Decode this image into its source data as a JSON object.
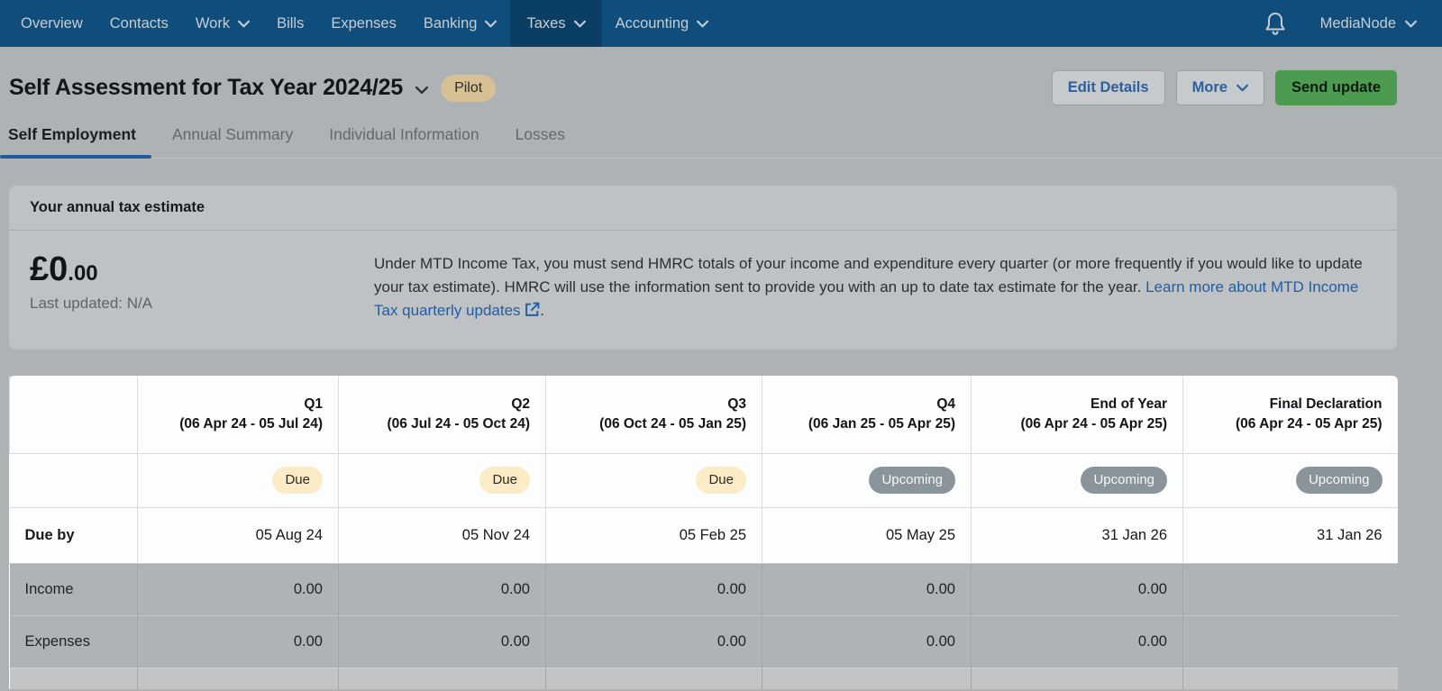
{
  "nav": {
    "items": [
      {
        "label": "Overview",
        "chevron": false,
        "active": false
      },
      {
        "label": "Contacts",
        "chevron": false,
        "active": false
      },
      {
        "label": "Work",
        "chevron": true,
        "active": false
      },
      {
        "label": "Bills",
        "chevron": false,
        "active": false
      },
      {
        "label": "Expenses",
        "chevron": false,
        "active": false
      },
      {
        "label": "Banking",
        "chevron": true,
        "active": false
      },
      {
        "label": "Taxes",
        "chevron": true,
        "active": true
      },
      {
        "label": "Accounting",
        "chevron": true,
        "active": false
      }
    ],
    "account_label": "MediaNode"
  },
  "header": {
    "title": "Self Assessment for Tax Year 2024/25",
    "badge": "Pilot",
    "buttons": {
      "edit": "Edit Details",
      "more": "More",
      "send": "Send update"
    }
  },
  "tabs": [
    {
      "label": "Self Employment",
      "active": true
    },
    {
      "label": "Annual Summary",
      "active": false
    },
    {
      "label": "Individual Information",
      "active": false
    },
    {
      "label": "Losses",
      "active": false
    }
  ],
  "estimate_card": {
    "title": "Your annual tax estimate",
    "amount_major": "£0",
    "amount_minor": ".00",
    "last_updated": "Last updated: N/A",
    "description": "Under MTD Income Tax, you must send HMRC totals of your income and expenditure every quarter (or more frequently if you would like to update your tax estimate). HMRC will use the information sent to provide you with an up to date tax estimate for the year. ",
    "link_text": "Learn more about MTD Income Tax quarterly updates",
    "after_link": "."
  },
  "table": {
    "row_labels": {
      "due_by": "Due by",
      "income": "Income",
      "expenses": "Expenses"
    },
    "columns": [
      {
        "title": "Q1",
        "period": "(06 Apr 24 - 05 Jul 24)",
        "status": "Due",
        "status_type": "due",
        "due_by": "05 Aug 24",
        "income": "0.00",
        "expenses": "0.00"
      },
      {
        "title": "Q2",
        "period": "(06 Jul 24 - 05 Oct 24)",
        "status": "Due",
        "status_type": "due",
        "due_by": "05 Nov 24",
        "income": "0.00",
        "expenses": "0.00"
      },
      {
        "title": "Q3",
        "period": "(06 Oct 24 - 05 Jan 25)",
        "status": "Due",
        "status_type": "due",
        "due_by": "05 Feb 25",
        "income": "0.00",
        "expenses": "0.00"
      },
      {
        "title": "Q4",
        "period": "(06 Jan 25 - 05 Apr 25)",
        "status": "Upcoming",
        "status_type": "upcoming",
        "due_by": "05 May 25",
        "income": "0.00",
        "expenses": "0.00"
      },
      {
        "title": "End of Year",
        "period": "(06 Apr 24 - 05 Apr 25)",
        "status": "Upcoming",
        "status_type": "upcoming",
        "due_by": "31 Jan 26",
        "income": "0.00",
        "expenses": "0.00"
      },
      {
        "title": "Final Declaration",
        "period": "(06 Apr 24 - 05 Apr 25)",
        "status": "Upcoming",
        "status_type": "upcoming",
        "due_by": "31 Jan 26",
        "income": "",
        "expenses": ""
      }
    ]
  },
  "colors": {
    "nav-bg": "#0f4e7c",
    "nav-active": "#0b3e63",
    "page-bg": "#aeb2b5",
    "blue": "#1f5ea6",
    "green": "#4c9b51",
    "pilot-bg": "#d7c194",
    "due-bg": "#fbecc7",
    "upcoming-bg": "#8a949b",
    "row-gray": "#b0b3b5",
    "table-bg": "#fcfdfd"
  }
}
